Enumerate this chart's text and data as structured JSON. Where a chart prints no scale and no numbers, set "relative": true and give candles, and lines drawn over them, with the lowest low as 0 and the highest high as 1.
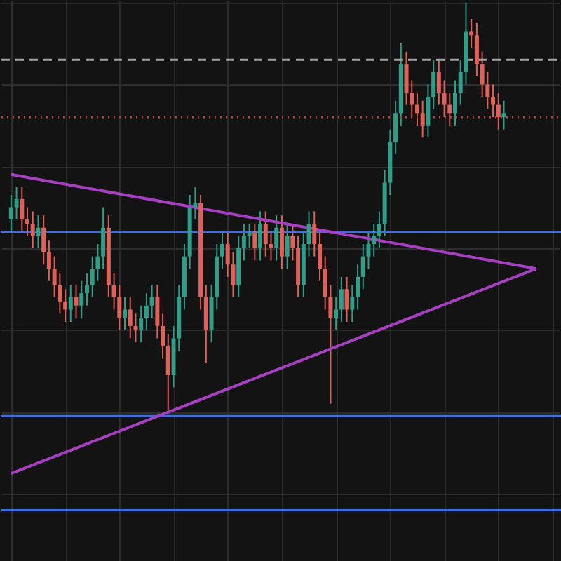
{
  "chart_data": {
    "type": "candlestick",
    "relative": true,
    "tick_labels": false,
    "grid": true,
    "categories": [
      null,
      null,
      null,
      null,
      null,
      null,
      null,
      null,
      null,
      null,
      null,
      null,
      null,
      null,
      null,
      null,
      null,
      null,
      null,
      null,
      null,
      null,
      null,
      null,
      null,
      null,
      null,
      null,
      null,
      null,
      null,
      null,
      null,
      null,
      null,
      null,
      null,
      null,
      null,
      null,
      null,
      null,
      null,
      null,
      null,
      null,
      null,
      null,
      null,
      null,
      null,
      null,
      null,
      null,
      null,
      null,
      null,
      null,
      null,
      null,
      null,
      null,
      null,
      null,
      null,
      null,
      null,
      null,
      null,
      null,
      null,
      null,
      null,
      null,
      null,
      null,
      null,
      null,
      null,
      null,
      null,
      null,
      null,
      null,
      null,
      null,
      null,
      null,
      null,
      null,
      null,
      null,
      null,
      null,
      null,
      null,
      null,
      null
    ],
    "colors": [
      "#2e9e88",
      "#2e9e88",
      "#e0605a",
      "#e0605a",
      "#e0605a",
      "#2e9e88",
      "#e0605a",
      "#e0605a",
      "#e0605a",
      "#e0605a",
      "#e0605a",
      "#2e9e88",
      "#e0605a",
      "#2e9e88",
      "#2e9e88",
      "#2e9e88",
      "#2e9e88",
      "#2e9e88",
      "#e0605a",
      "#e0605a",
      "#e0605a",
      "#2e9e88",
      "#e0605a",
      "#e0605a",
      "#2e9e88",
      "#2e9e88",
      "#2e9e88",
      "#e0605a",
      "#e0605a",
      "#e0605a",
      "#2e9e88",
      "#2e9e88",
      "#2e9e88",
      "#2e9e88",
      "#2e9e88",
      "#e0605a",
      "#e0605a",
      "#2e9e88",
      "#2e9e88",
      "#2e9e88",
      "#e0605a",
      "#e0605a",
      "#2e9e88",
      "#2e9e88",
      "#2e9e88",
      "#e0605a",
      "#2e9e88",
      "#e0605a",
      "#e0605a",
      "#2e9e88",
      "#e0605a",
      "#2e9e88",
      "#e0605a",
      "#e0605a",
      "#2e9e88",
      "#2e9e88",
      "#e0605a",
      "#e0605a",
      "#e0605a",
      "#e0605a",
      "#2e9e88",
      "#2e9e88",
      "#e0605a",
      "#2e9e88",
      "#2e9e88",
      "#2e9e88",
      "#2e9e88",
      "#2e9e88",
      "#2e9e88",
      "#2e9e88",
      "#2e9e88",
      "#2e9e88",
      "#2e9e88",
      "#e0605a",
      "#e0605a",
      "#e0605a",
      "#e0605a",
      "#2e9e88",
      "#2e9e88",
      "#e0605a",
      "#e0605a",
      "#e0605a",
      "#2e9e88",
      "#2e9e88",
      "#2e9e88",
      "#e0605a",
      "#e0605a",
      "#e0605a",
      "#e0605a",
      "#e0605a",
      "#e0605a",
      "#2e9e88",
      null,
      null,
      null,
      null,
      null,
      null
    ],
    "ohlc": [
      [
        0.47,
        0.53,
        0.44,
        0.5
      ],
      [
        0.5,
        0.55,
        0.47,
        0.52
      ],
      [
        0.52,
        0.55,
        0.44,
        0.47
      ],
      [
        0.47,
        0.5,
        0.43,
        0.46
      ],
      [
        0.46,
        0.49,
        0.4,
        0.43
      ],
      [
        0.43,
        0.48,
        0.4,
        0.45
      ],
      [
        0.45,
        0.48,
        0.36,
        0.39
      ],
      [
        0.39,
        0.42,
        0.32,
        0.35
      ],
      [
        0.35,
        0.38,
        0.28,
        0.31
      ],
      [
        0.31,
        0.34,
        0.24,
        0.27
      ],
      [
        0.27,
        0.3,
        0.22,
        0.25
      ],
      [
        0.25,
        0.31,
        0.22,
        0.28
      ],
      [
        0.28,
        0.31,
        0.23,
        0.26
      ],
      [
        0.26,
        0.32,
        0.23,
        0.29
      ],
      [
        0.29,
        0.34,
        0.26,
        0.31
      ],
      [
        0.31,
        0.38,
        0.28,
        0.35
      ],
      [
        0.35,
        0.41,
        0.32,
        0.38
      ],
      [
        0.38,
        0.5,
        0.35,
        0.45
      ],
      [
        0.45,
        0.48,
        0.28,
        0.31
      ],
      [
        0.31,
        0.34,
        0.25,
        0.28
      ],
      [
        0.28,
        0.31,
        0.2,
        0.23
      ],
      [
        0.23,
        0.28,
        0.2,
        0.25
      ],
      [
        0.25,
        0.28,
        0.18,
        0.21
      ],
      [
        0.21,
        0.24,
        0.17,
        0.2
      ],
      [
        0.2,
        0.26,
        0.17,
        0.23
      ],
      [
        0.23,
        0.29,
        0.2,
        0.26
      ],
      [
        0.26,
        0.31,
        0.23,
        0.28
      ],
      [
        0.28,
        0.31,
        0.18,
        0.21
      ],
      [
        0.21,
        0.24,
        0.13,
        0.16
      ],
      [
        0.16,
        0.19,
        0,
        0.09
      ],
      [
        0.09,
        0.21,
        0.06,
        0.18
      ],
      [
        0.18,
        0.31,
        0.15,
        0.28
      ],
      [
        0.28,
        0.41,
        0.25,
        0.38
      ],
      [
        0.38,
        0.53,
        0.35,
        0.5
      ],
      [
        0.5,
        0.55,
        0.47,
        0.51
      ],
      [
        0.51,
        0.53,
        0.25,
        0.28
      ],
      [
        0.28,
        0.31,
        0.12,
        0.2
      ],
      [
        0.2,
        0.31,
        0.17,
        0.28
      ],
      [
        0.28,
        0.41,
        0.25,
        0.38
      ],
      [
        0.38,
        0.44,
        0.35,
        0.41
      ],
      [
        0.41,
        0.44,
        0.33,
        0.36
      ],
      [
        0.36,
        0.39,
        0.28,
        0.31
      ],
      [
        0.31,
        0.43,
        0.28,
        0.4
      ],
      [
        0.4,
        0.46,
        0.37,
        0.43
      ],
      [
        0.43,
        0.46,
        0.4,
        0.44
      ],
      [
        0.44,
        0.46,
        0.37,
        0.4
      ],
      [
        0.4,
        0.49,
        0.37,
        0.46
      ],
      [
        0.46,
        0.49,
        0.38,
        0.41
      ],
      [
        0.41,
        0.44,
        0.37,
        0.4
      ],
      [
        0.4,
        0.48,
        0.37,
        0.45
      ],
      [
        0.45,
        0.48,
        0.35,
        0.38
      ],
      [
        0.38,
        0.46,
        0.35,
        0.43
      ],
      [
        0.43,
        0.46,
        0.37,
        0.4
      ],
      [
        0.4,
        0.43,
        0.28,
        0.31
      ],
      [
        0.31,
        0.44,
        0.28,
        0.41
      ],
      [
        0.41,
        0.49,
        0.38,
        0.46
      ],
      [
        0.46,
        0.49,
        0.38,
        0.41
      ],
      [
        0.41,
        0.44,
        0.32,
        0.35
      ],
      [
        0.35,
        0.38,
        0.25,
        0.28
      ],
      [
        0.28,
        0.31,
        0.02,
        0.23
      ],
      [
        0.23,
        0.28,
        0.2,
        0.25
      ],
      [
        0.25,
        0.33,
        0.22,
        0.3
      ],
      [
        0.3,
        0.33,
        0.22,
        0.25
      ],
      [
        0.25,
        0.31,
        0.22,
        0.28
      ],
      [
        0.28,
        0.36,
        0.25,
        0.33
      ],
      [
        0.33,
        0.41,
        0.3,
        0.38
      ],
      [
        0.38,
        0.44,
        0.35,
        0.41
      ],
      [
        0.41,
        0.46,
        0.38,
        0.43
      ],
      [
        0.43,
        0.49,
        0.4,
        0.46
      ],
      [
        0.46,
        0.59,
        0.43,
        0.56
      ],
      [
        0.56,
        0.69,
        0.53,
        0.66
      ],
      [
        0.66,
        0.76,
        0.63,
        0.73
      ],
      [
        0.73,
        0.9,
        0.7,
        0.85
      ],
      [
        0.85,
        0.88,
        0.75,
        0.78
      ],
      [
        0.78,
        0.81,
        0.72,
        0.75
      ],
      [
        0.75,
        0.78,
        0.7,
        0.73
      ],
      [
        0.73,
        0.76,
        0.67,
        0.7
      ],
      [
        0.7,
        0.8,
        0.67,
        0.77
      ],
      [
        0.77,
        0.86,
        0.74,
        0.83
      ],
      [
        0.83,
        0.86,
        0.75,
        0.78
      ],
      [
        0.78,
        0.81,
        0.72,
        0.75
      ],
      [
        0.75,
        0.78,
        0.7,
        0.73
      ],
      [
        0.73,
        0.81,
        0.7,
        0.78
      ],
      [
        0.78,
        0.86,
        0.75,
        0.83
      ],
      [
        0.83,
        1,
        0.8,
        0.93
      ],
      [
        0.93,
        0.96,
        0.89,
        0.92
      ],
      [
        0.92,
        0.95,
        0.82,
        0.85
      ],
      [
        0.85,
        0.88,
        0.77,
        0.8
      ],
      [
        0.8,
        0.83,
        0.74,
        0.77
      ],
      [
        0.77,
        0.8,
        0.72,
        0.75
      ],
      [
        0.75,
        0.78,
        0.69,
        0.72
      ],
      [
        0.72,
        0.76,
        0.69,
        0.73
      ],
      null,
      null,
      null,
      null,
      null,
      null
    ],
    "series": [
      {
        "type": "line",
        "values": [
          0.58,
          null,
          null,
          null,
          null,
          null,
          null,
          null,
          null,
          null,
          null,
          null,
          null,
          null,
          null,
          null,
          null,
          null,
          null,
          null,
          null,
          null,
          null,
          null,
          null,
          null,
          null,
          null,
          null,
          null,
          null,
          null,
          null,
          null,
          null,
          null,
          null,
          null,
          null,
          null,
          null,
          null,
          null,
          null,
          null,
          null,
          null,
          null,
          null,
          null,
          null,
          null,
          null,
          null,
          null,
          null,
          null,
          null,
          null,
          null,
          null,
          null,
          null,
          null,
          null,
          null,
          null,
          null,
          null,
          null,
          null,
          null,
          null,
          null,
          null,
          null,
          null,
          null,
          null,
          null,
          null,
          null,
          null,
          null,
          null,
          null,
          null,
          null,
          null,
          null,
          null,
          null,
          null,
          null,
          null,
          null,
          null,
          0.35
        ],
        "color": "#a63fc0"
      },
      {
        "type": "line",
        "values": [
          -0.15,
          null,
          null,
          null,
          null,
          null,
          null,
          null,
          null,
          null,
          null,
          null,
          null,
          null,
          null,
          null,
          null,
          null,
          null,
          null,
          null,
          null,
          null,
          null,
          null,
          null,
          null,
          null,
          null,
          null,
          null,
          null,
          null,
          null,
          null,
          null,
          null,
          null,
          null,
          null,
          null,
          null,
          null,
          null,
          null,
          null,
          null,
          null,
          null,
          null,
          null,
          null,
          null,
          null,
          null,
          null,
          null,
          null,
          null,
          null,
          null,
          null,
          null,
          null,
          null,
          null,
          null,
          null,
          null,
          null,
          null,
          null,
          null,
          null,
          null,
          null,
          null,
          null,
          null,
          null,
          null,
          null,
          null,
          null,
          null,
          null,
          null,
          null,
          null,
          null,
          null,
          null,
          null,
          null,
          null,
          null,
          null,
          0.35
        ],
        "color": "#a63fc0"
      }
    ],
    "ref_lines": [
      {
        "axis": "y",
        "value": 0.44,
        "color": "#3d6fe0",
        "line_style": "solid"
      },
      {
        "axis": "y",
        "value": -0.01,
        "color": "#3d6fe0",
        "line_style": "solid"
      },
      {
        "axis": "y",
        "value": -0.24,
        "color": "#3d6fe0",
        "line_style": "solid"
      },
      {
        "axis": "y",
        "value": 0.86,
        "color": "#a0a0a0",
        "line_style": "dashed"
      },
      {
        "axis": "y",
        "value": 0.72,
        "color": "#b84040",
        "line_style": "dotted"
      }
    ]
  }
}
